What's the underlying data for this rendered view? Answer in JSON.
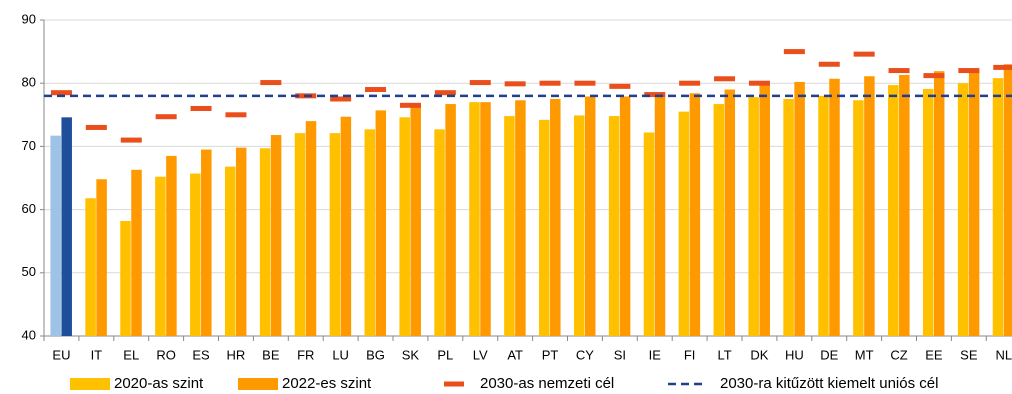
{
  "chart_data": {
    "type": "bar",
    "categories": [
      "EU",
      "IT",
      "EL",
      "RO",
      "ES",
      "HR",
      "BE",
      "FR",
      "LU",
      "BG",
      "SK",
      "PL",
      "LV",
      "AT",
      "PT",
      "CY",
      "SI",
      "IE",
      "FI",
      "LT",
      "DK",
      "HU",
      "DE",
      "MT",
      "CZ",
      "EE",
      "SE",
      "NL"
    ],
    "series": [
      {
        "name": "2020-as szint",
        "color": "#ffc000",
        "colors": [
          "#9dc3e6",
          "#ffc000",
          "#ffc000",
          "#ffc000",
          "#ffc000",
          "#ffc000",
          "#ffc000",
          "#ffc000",
          "#ffc000",
          "#ffc000",
          "#ffc000",
          "#ffc000",
          "#ffc000",
          "#ffc000",
          "#ffc000",
          "#ffc000",
          "#ffc000",
          "#ffc000",
          "#ffc000",
          "#ffc000",
          "#ffc000",
          "#ffc000",
          "#ffc000",
          "#ffc000",
          "#ffc000",
          "#ffc000",
          "#ffc000",
          "#ffc000"
        ],
        "values": [
          71.7,
          61.8,
          58.2,
          65.2,
          65.7,
          66.8,
          69.7,
          72.1,
          72.1,
          72.7,
          74.6,
          72.7,
          77.0,
          74.8,
          74.2,
          74.9,
          74.8,
          72.2,
          75.5,
          76.7,
          77.8,
          77.5,
          78.0,
          77.3,
          79.7,
          79.1,
          80.0,
          80.8
        ]
      },
      {
        "name": "2022-es szint",
        "color": "#ff9900",
        "colors": [
          "#1f4e9a",
          "#ff9900",
          "#ff9900",
          "#ff9900",
          "#ff9900",
          "#ff9900",
          "#ff9900",
          "#ff9900",
          "#ff9900",
          "#ff9900",
          "#ff9900",
          "#ff9900",
          "#ff9900",
          "#ff9900",
          "#ff9900",
          "#ff9900",
          "#ff9900",
          "#ff9900",
          "#ff9900",
          "#ff9900",
          "#ff9900",
          "#ff9900",
          "#ff9900",
          "#ff9900",
          "#ff9900",
          "#ff9900",
          "#ff9900",
          "#ff9900"
        ],
        "values": [
          74.6,
          64.8,
          66.3,
          68.5,
          69.5,
          69.8,
          71.8,
          74.0,
          74.7,
          75.7,
          76.7,
          76.7,
          77.0,
          77.3,
          77.5,
          77.9,
          77.9,
          78.2,
          78.4,
          79.0,
          79.9,
          80.2,
          80.7,
          81.1,
          81.3,
          81.9,
          82.2,
          83.0
        ]
      },
      {
        "name": "2030-as nemzeti cél",
        "color": "#e94e1b",
        "marker": "dash",
        "values": [
          78.5,
          73.0,
          71.0,
          74.7,
          76.0,
          75.0,
          80.1,
          78.0,
          77.5,
          79.0,
          76.5,
          78.5,
          80.1,
          79.9,
          80.0,
          80.0,
          79.5,
          78.2,
          80.0,
          80.7,
          80.0,
          85.0,
          83.0,
          84.6,
          82.0,
          81.2,
          82.0,
          82.5
        ]
      }
    ],
    "reference_line": {
      "name": "2030-ra kitűzött kiemelt uniós cél",
      "value": 78,
      "color": "#1f3f8f"
    },
    "ylim": [
      40,
      90
    ],
    "yticks": [
      40,
      50,
      60,
      70,
      80,
      90
    ],
    "grid": true
  }
}
